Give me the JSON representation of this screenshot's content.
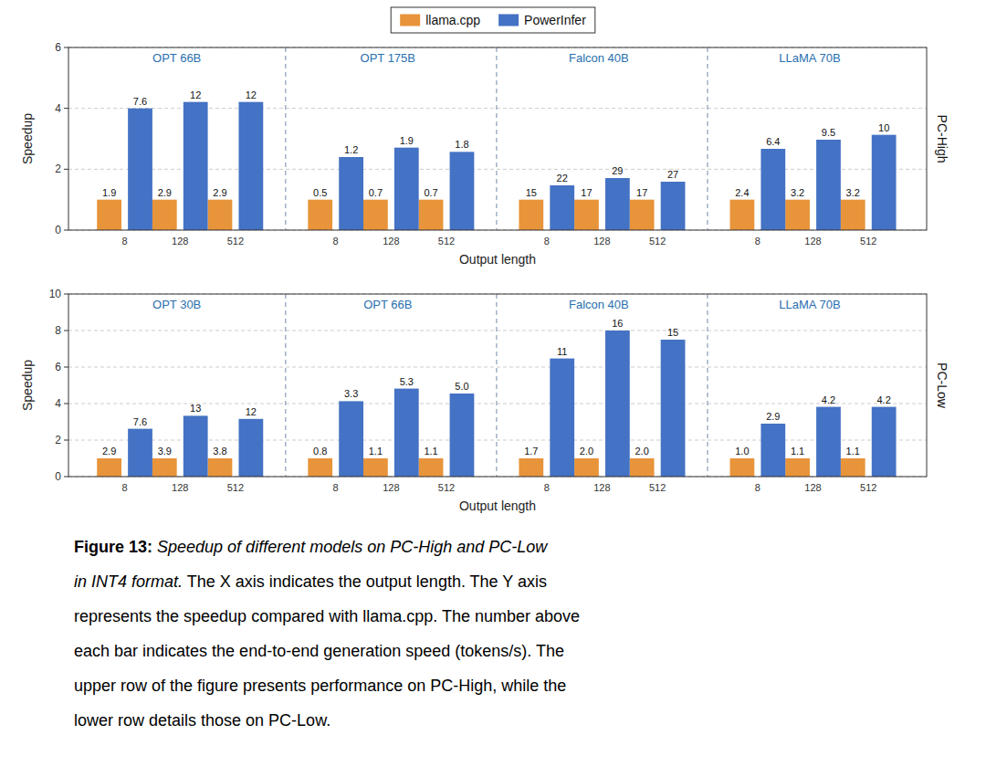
{
  "chart_data": [
    {
      "type": "bar",
      "side_label": "PC-High",
      "xlabel": "Output length",
      "ylabel": "Speedup",
      "groups": [
        "OPT 66B",
        "OPT 175B",
        "Falcon 40B",
        "LLaMA 70B"
      ],
      "categories": [
        "8",
        "128",
        "512",
        "8",
        "128",
        "512",
        "8",
        "128",
        "512",
        "8",
        "128",
        "512"
      ],
      "series": [
        {
          "name": "llama.cpp",
          "color": "#E8943A",
          "values": [
            1.0,
            1.0,
            1.0,
            1.0,
            1.0,
            1.0,
            1.0,
            1.0,
            1.0,
            1.0,
            1.0,
            1.0
          ],
          "speed_labels": [
            "1.9",
            "2.9",
            "2.9",
            "0.5",
            "0.7",
            "0.7",
            "15",
            "17",
            "17",
            "2.4",
            "3.2",
            "3.2"
          ]
        },
        {
          "name": "PowerInfer",
          "color": "#4472C4",
          "values": [
            4.0,
            4.21,
            4.21,
            2.4,
            2.71,
            2.57,
            1.47,
            1.71,
            1.59,
            2.67,
            2.97,
            3.13
          ],
          "speed_labels": [
            "7.6",
            "12",
            "12",
            "1.2",
            "1.9",
            "1.8",
            "22",
            "29",
            "27",
            "6.4",
            "9.5",
            "10"
          ]
        }
      ],
      "ylim": [
        0,
        6
      ],
      "yticks": [
        0,
        2,
        4,
        6
      ],
      "grid": true,
      "legend": "top"
    },
    {
      "type": "bar",
      "side_label": "PC-Low",
      "xlabel": "Output length",
      "ylabel": "Speedup",
      "groups": [
        "OPT 30B",
        "OPT 66B",
        "Falcon 40B",
        "LLaMA 70B"
      ],
      "categories": [
        "8",
        "128",
        "512",
        "8",
        "128",
        "512",
        "8",
        "128",
        "512",
        "8",
        "128",
        "512"
      ],
      "series": [
        {
          "color": "#E8943A",
          "values": [
            1.0,
            1.0,
            1.0,
            1.0,
            1.0,
            1.0,
            1.0,
            1.0,
            1.0,
            1.0,
            1.0,
            1.0
          ],
          "speed_labels": [
            "2.9",
            "3.9",
            "3.8",
            "0.8",
            "1.1",
            "1.1",
            "1.7",
            "2.0",
            "2.0",
            "1.0",
            "1.1",
            "1.1"
          ]
        },
        {
          "color": "#4472C4",
          "values": [
            2.62,
            3.33,
            3.16,
            4.13,
            4.82,
            4.55,
            6.47,
            8.0,
            7.5,
            2.9,
            3.82,
            3.82
          ],
          "speed_labels": [
            "7.6",
            "13",
            "12",
            "3.3",
            "5.3",
            "5.0",
            "11",
            "16",
            "15",
            "2.9",
            "4.2",
            "4.2"
          ]
        }
      ],
      "ylim": [
        0,
        10
      ],
      "yticks": [
        0,
        2,
        4,
        6,
        8,
        10
      ],
      "grid": true
    }
  ],
  "caption": [
    [
      {
        "text": "Figure 13:",
        "style": "bold"
      },
      {
        "text": " Speedup of different models on PC-High and PC-Low",
        "style": "italic"
      }
    ],
    [
      {
        "text": "in INT4 format.",
        "style": "italic"
      },
      {
        "text": " The X axis indicates the output length. The Y axis",
        "style": "normal"
      }
    ],
    [
      {
        "text": "represents the speedup compared with llama.cpp. The number above",
        "style": "normal"
      }
    ],
    [
      {
        "text": "each bar indicates the end-to-end generation speed (tokens/s). The",
        "style": "normal"
      }
    ],
    [
      {
        "text": "upper row of the figure presents performance on PC-High, while the",
        "style": "normal"
      }
    ],
    [
      {
        "text": "lower row details those on PC-Low.",
        "style": "normal"
      }
    ]
  ]
}
